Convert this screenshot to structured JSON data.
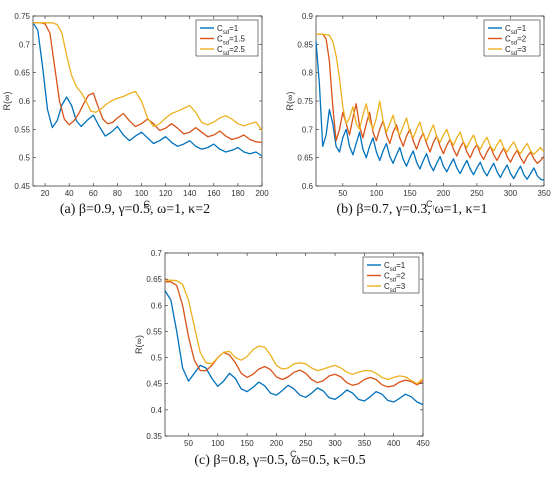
{
  "colors": {
    "series1": "#0072BD",
    "series2": "#D95319",
    "series3": "#EDB120",
    "axis": "#333333"
  },
  "chart_data": [
    {
      "type": "line",
      "caption": "(a) β=0.9, γ=0.5, ω=1, κ=2",
      "xlabel": "C_l",
      "ylabel": "R(∞)",
      "xlim": [
        10,
        200
      ],
      "ylim": [
        0.45,
        0.75
      ],
      "xticks": [
        20,
        40,
        60,
        80,
        100,
        120,
        140,
        160,
        180,
        200
      ],
      "yticks": [
        0.45,
        0.5,
        0.55,
        0.6,
        0.65,
        0.7,
        0.75
      ],
      "ytick_labels": [
        "0.45",
        "0.5",
        "0.55",
        "0.6",
        "0.65",
        "0.7",
        "0.75"
      ],
      "legend_position": "top-right",
      "series": [
        {
          "name": "C_sd=1",
          "x": [
            10,
            14,
            18,
            22,
            26,
            30,
            34,
            38,
            42,
            46,
            50,
            55,
            60,
            65,
            70,
            75,
            80,
            85,
            90,
            95,
            100,
            105,
            110,
            115,
            120,
            125,
            130,
            135,
            140,
            145,
            150,
            155,
            160,
            165,
            170,
            175,
            180,
            185,
            190,
            195,
            200
          ],
          "y": [
            0.738,
            0.725,
            0.66,
            0.585,
            0.553,
            0.565,
            0.593,
            0.607,
            0.592,
            0.565,
            0.555,
            0.566,
            0.575,
            0.555,
            0.538,
            0.545,
            0.555,
            0.54,
            0.53,
            0.538,
            0.545,
            0.535,
            0.525,
            0.53,
            0.537,
            0.527,
            0.52,
            0.524,
            0.53,
            0.52,
            0.515,
            0.518,
            0.524,
            0.515,
            0.51,
            0.513,
            0.518,
            0.51,
            0.507,
            0.51,
            0.503
          ]
        },
        {
          "name": "C_sd=1.5",
          "x": [
            10,
            16,
            20,
            24,
            28,
            32,
            36,
            40,
            44,
            48,
            52,
            56,
            60,
            64,
            68,
            72,
            76,
            80,
            85,
            90,
            95,
            100,
            105,
            110,
            115,
            120,
            125,
            130,
            135,
            140,
            145,
            150,
            155,
            160,
            165,
            170,
            175,
            180,
            185,
            190,
            195,
            200
          ],
          "y": [
            0.738,
            0.738,
            0.736,
            0.72,
            0.66,
            0.6,
            0.568,
            0.558,
            0.565,
            0.578,
            0.595,
            0.61,
            0.614,
            0.59,
            0.568,
            0.56,
            0.562,
            0.57,
            0.578,
            0.565,
            0.555,
            0.56,
            0.568,
            0.56,
            0.548,
            0.552,
            0.56,
            0.552,
            0.542,
            0.545,
            0.553,
            0.545,
            0.537,
            0.54,
            0.547,
            0.538,
            0.532,
            0.535,
            0.54,
            0.532,
            0.528,
            0.527
          ]
        },
        {
          "name": "C_sd=2.5",
          "x": [
            10,
            20,
            26,
            30,
            34,
            38,
            42,
            46,
            50,
            54,
            58,
            62,
            66,
            70,
            75,
            80,
            85,
            90,
            95,
            100,
            105,
            110,
            115,
            120,
            125,
            130,
            135,
            140,
            145,
            150,
            155,
            160,
            165,
            170,
            175,
            180,
            185,
            190,
            195,
            200
          ],
          "y": [
            0.738,
            0.738,
            0.738,
            0.735,
            0.72,
            0.68,
            0.645,
            0.625,
            0.615,
            0.6,
            0.582,
            0.58,
            0.585,
            0.593,
            0.6,
            0.605,
            0.608,
            0.613,
            0.617,
            0.6,
            0.57,
            0.555,
            0.56,
            0.57,
            0.578,
            0.582,
            0.587,
            0.592,
            0.58,
            0.562,
            0.558,
            0.563,
            0.57,
            0.574,
            0.568,
            0.56,
            0.556,
            0.56,
            0.563,
            0.548
          ]
        }
      ]
    },
    {
      "type": "line",
      "caption": "(b) β=0.7, γ=0.3, ω=1, κ=1",
      "xlabel": "C_l",
      "ylabel": "R(∞)",
      "xlim": [
        10,
        350
      ],
      "ylim": [
        0.6,
        0.9
      ],
      "xticks": [
        50,
        100,
        150,
        200,
        250,
        300,
        350
      ],
      "yticks": [
        0.6,
        0.65,
        0.7,
        0.75,
        0.8,
        0.85,
        0.9
      ],
      "ytick_labels": [
        "0.6",
        "0.65",
        "0.7",
        "0.75",
        "0.8",
        "0.85",
        "0.9"
      ],
      "legend_position": "top-right",
      "series": [
        {
          "name": "C_sd=1",
          "x": [
            10,
            15,
            20,
            25,
            30,
            35,
            40,
            45,
            50,
            55,
            60,
            65,
            70,
            75,
            80,
            85,
            90,
            95,
            100,
            105,
            110,
            115,
            120,
            125,
            130,
            135,
            140,
            145,
            150,
            155,
            160,
            165,
            170,
            175,
            180,
            185,
            190,
            195,
            200,
            205,
            210,
            215,
            220,
            225,
            230,
            235,
            240,
            245,
            250,
            255,
            260,
            265,
            270,
            275,
            280,
            285,
            290,
            295,
            300,
            305,
            310,
            315,
            320,
            325,
            330,
            335,
            340,
            345,
            350
          ],
          "y": [
            0.855,
            0.78,
            0.67,
            0.69,
            0.735,
            0.71,
            0.67,
            0.66,
            0.685,
            0.7,
            0.67,
            0.655,
            0.675,
            0.695,
            0.665,
            0.65,
            0.67,
            0.685,
            0.66,
            0.645,
            0.662,
            0.675,
            0.652,
            0.64,
            0.655,
            0.668,
            0.647,
            0.635,
            0.65,
            0.662,
            0.642,
            0.63,
            0.645,
            0.657,
            0.638,
            0.627,
            0.64,
            0.652,
            0.635,
            0.625,
            0.637,
            0.648,
            0.632,
            0.622,
            0.634,
            0.645,
            0.63,
            0.62,
            0.632,
            0.642,
            0.627,
            0.618,
            0.63,
            0.64,
            0.625,
            0.615,
            0.627,
            0.637,
            0.622,
            0.613,
            0.625,
            0.635,
            0.62,
            0.612,
            0.622,
            0.632,
            0.618,
            0.612,
            0.61
          ]
        },
        {
          "name": "C_sd=2",
          "x": [
            10,
            20,
            25,
            30,
            35,
            40,
            45,
            50,
            55,
            60,
            65,
            70,
            75,
            80,
            85,
            90,
            95,
            100,
            105,
            110,
            115,
            120,
            125,
            130,
            135,
            140,
            145,
            150,
            155,
            160,
            165,
            170,
            175,
            180,
            185,
            190,
            195,
            200,
            205,
            210,
            215,
            220,
            225,
            230,
            235,
            240,
            245,
            250,
            255,
            260,
            265,
            270,
            275,
            280,
            285,
            290,
            295,
            300,
            305,
            310,
            315,
            320,
            325,
            330,
            335,
            340,
            345,
            350
          ],
          "y": [
            0.868,
            0.868,
            0.86,
            0.82,
            0.74,
            0.68,
            0.7,
            0.73,
            0.71,
            0.69,
            0.72,
            0.745,
            0.705,
            0.685,
            0.71,
            0.73,
            0.695,
            0.68,
            0.7,
            0.715,
            0.69,
            0.675,
            0.695,
            0.708,
            0.685,
            0.67,
            0.688,
            0.7,
            0.68,
            0.665,
            0.682,
            0.693,
            0.675,
            0.66,
            0.677,
            0.688,
            0.67,
            0.657,
            0.672,
            0.682,
            0.665,
            0.653,
            0.668,
            0.678,
            0.66,
            0.65,
            0.664,
            0.673,
            0.657,
            0.647,
            0.66,
            0.67,
            0.655,
            0.645,
            0.657,
            0.667,
            0.652,
            0.642,
            0.654,
            0.663,
            0.65,
            0.64,
            0.652,
            0.66,
            0.648,
            0.64,
            0.645,
            0.652
          ]
        },
        {
          "name": "C_sd=3",
          "x": [
            10,
            20,
            30,
            35,
            40,
            45,
            50,
            55,
            60,
            65,
            70,
            75,
            80,
            85,
            90,
            95,
            100,
            105,
            110,
            115,
            120,
            125,
            130,
            135,
            140,
            145,
            150,
            155,
            160,
            165,
            170,
            175,
            180,
            185,
            190,
            195,
            200,
            205,
            210,
            215,
            220,
            225,
            230,
            235,
            240,
            245,
            250,
            255,
            260,
            265,
            270,
            275,
            280,
            285,
            290,
            295,
            300,
            305,
            310,
            315,
            320,
            325,
            330,
            335,
            340,
            345,
            350
          ],
          "y": [
            0.868,
            0.868,
            0.866,
            0.855,
            0.83,
            0.79,
            0.74,
            0.71,
            0.72,
            0.74,
            0.71,
            0.7,
            0.725,
            0.745,
            0.715,
            0.7,
            0.72,
            0.75,
            0.715,
            0.695,
            0.71,
            0.725,
            0.7,
            0.69,
            0.705,
            0.72,
            0.695,
            0.685,
            0.7,
            0.713,
            0.69,
            0.68,
            0.695,
            0.708,
            0.687,
            0.677,
            0.69,
            0.7,
            0.682,
            0.672,
            0.685,
            0.695,
            0.677,
            0.668,
            0.68,
            0.69,
            0.673,
            0.665,
            0.677,
            0.686,
            0.67,
            0.662,
            0.673,
            0.682,
            0.667,
            0.66,
            0.67,
            0.678,
            0.664,
            0.657,
            0.667,
            0.675,
            0.662,
            0.656,
            0.662,
            0.668,
            0.66
          ]
        }
      ]
    },
    {
      "type": "line",
      "caption": "(c) β=0.8, γ=0.5, ω=0.5, κ=0.5",
      "xlabel": "C_l",
      "ylabel": "R(∞)",
      "xlim": [
        10,
        450
      ],
      "ylim": [
        0.35,
        0.7
      ],
      "xticks": [
        50,
        100,
        150,
        200,
        250,
        300,
        350,
        400,
        450
      ],
      "yticks": [
        0.35,
        0.4,
        0.45,
        0.5,
        0.55,
        0.6,
        0.65,
        0.7
      ],
      "ytick_labels": [
        "0.35",
        "0.4",
        "0.45",
        "0.5",
        "0.55",
        "0.6",
        "0.65",
        "0.7"
      ],
      "legend_position": "top-right",
      "series": [
        {
          "name": "C_sd=1",
          "x": [
            10,
            20,
            30,
            40,
            50,
            60,
            70,
            80,
            90,
            100,
            110,
            120,
            130,
            140,
            150,
            160,
            170,
            180,
            190,
            200,
            210,
            220,
            230,
            240,
            250,
            260,
            270,
            280,
            290,
            300,
            310,
            320,
            330,
            340,
            350,
            360,
            370,
            380,
            390,
            400,
            410,
            420,
            430,
            440,
            450
          ],
          "y": [
            0.628,
            0.61,
            0.55,
            0.48,
            0.455,
            0.47,
            0.485,
            0.48,
            0.46,
            0.445,
            0.455,
            0.47,
            0.46,
            0.44,
            0.435,
            0.443,
            0.453,
            0.446,
            0.432,
            0.428,
            0.437,
            0.447,
            0.44,
            0.428,
            0.424,
            0.432,
            0.442,
            0.436,
            0.423,
            0.42,
            0.428,
            0.438,
            0.432,
            0.42,
            0.417,
            0.425,
            0.435,
            0.43,
            0.418,
            0.415,
            0.422,
            0.43,
            0.425,
            0.415,
            0.41
          ]
        },
        {
          "name": "C_sd=2",
          "x": [
            10,
            20,
            30,
            40,
            50,
            60,
            70,
            80,
            90,
            100,
            110,
            120,
            130,
            140,
            150,
            160,
            170,
            180,
            190,
            200,
            210,
            220,
            230,
            240,
            250,
            260,
            270,
            280,
            290,
            300,
            310,
            320,
            330,
            340,
            350,
            360,
            370,
            380,
            390,
            400,
            410,
            420,
            430,
            440,
            450
          ],
          "y": [
            0.645,
            0.645,
            0.638,
            0.6,
            0.54,
            0.495,
            0.475,
            0.475,
            0.485,
            0.5,
            0.51,
            0.505,
            0.49,
            0.47,
            0.462,
            0.468,
            0.478,
            0.483,
            0.477,
            0.463,
            0.458,
            0.463,
            0.472,
            0.476,
            0.47,
            0.458,
            0.452,
            0.456,
            0.465,
            0.468,
            0.463,
            0.452,
            0.447,
            0.45,
            0.458,
            0.462,
            0.458,
            0.448,
            0.444,
            0.446,
            0.453,
            0.457,
            0.454,
            0.448,
            0.455
          ]
        },
        {
          "name": "C_sd=3",
          "x": [
            10,
            20,
            30,
            40,
            50,
            60,
            70,
            80,
            90,
            100,
            110,
            120,
            130,
            140,
            150,
            160,
            170,
            180,
            190,
            200,
            210,
            220,
            230,
            240,
            250,
            260,
            270,
            280,
            290,
            300,
            310,
            320,
            330,
            340,
            350,
            360,
            370,
            380,
            390,
            400,
            410,
            420,
            430,
            440,
            450
          ],
          "y": [
            0.648,
            0.648,
            0.647,
            0.64,
            0.61,
            0.56,
            0.51,
            0.49,
            0.488,
            0.5,
            0.51,
            0.512,
            0.5,
            0.495,
            0.502,
            0.515,
            0.522,
            0.52,
            0.505,
            0.485,
            0.478,
            0.48,
            0.488,
            0.49,
            0.488,
            0.48,
            0.475,
            0.478,
            0.482,
            0.485,
            0.48,
            0.472,
            0.468,
            0.472,
            0.475,
            0.475,
            0.47,
            0.462,
            0.458,
            0.462,
            0.465,
            0.463,
            0.456,
            0.45,
            0.46
          ]
        }
      ]
    }
  ]
}
